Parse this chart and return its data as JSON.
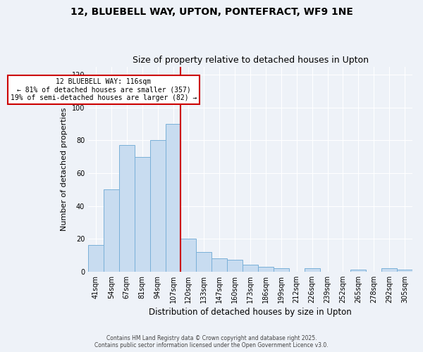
{
  "title_line1": "12, BLUEBELL WAY, UPTON, PONTEFRACT, WF9 1NE",
  "title_line2": "Size of property relative to detached houses in Upton",
  "xlabel": "Distribution of detached houses by size in Upton",
  "ylabel": "Number of detached properties",
  "bar_labels": [
    "41sqm",
    "54sqm",
    "67sqm",
    "81sqm",
    "94sqm",
    "107sqm",
    "120sqm",
    "133sqm",
    "147sqm",
    "160sqm",
    "173sqm",
    "186sqm",
    "199sqm",
    "212sqm",
    "226sqm",
    "239sqm",
    "252sqm",
    "265sqm",
    "278sqm",
    "292sqm",
    "305sqm"
  ],
  "bar_heights": [
    16,
    50,
    77,
    70,
    80,
    90,
    20,
    12,
    8,
    7,
    4,
    3,
    2,
    0,
    2,
    0,
    0,
    1,
    0,
    2,
    1
  ],
  "bar_color": "#c8dcf0",
  "bar_edge_color": "#7ab0d8",
  "vline_color": "#cc0000",
  "annotation_title": "12 BLUEBELL WAY: 116sqm",
  "annotation_line1": "← 81% of detached houses are smaller (357)",
  "annotation_line2": "19% of semi-detached houses are larger (82) →",
  "annotation_box_color": "#ffffff",
  "annotation_box_edge": "#cc0000",
  "ylim": [
    0,
    125
  ],
  "yticks": [
    0,
    20,
    40,
    60,
    80,
    100,
    120
  ],
  "footer1": "Contains HM Land Registry data © Crown copyright and database right 2025.",
  "footer2": "Contains public sector information licensed under the Open Government Licence v3.0.",
  "bg_color": "#eef2f8",
  "plot_bg_color": "#eef2f8",
  "grid_color": "#ffffff"
}
